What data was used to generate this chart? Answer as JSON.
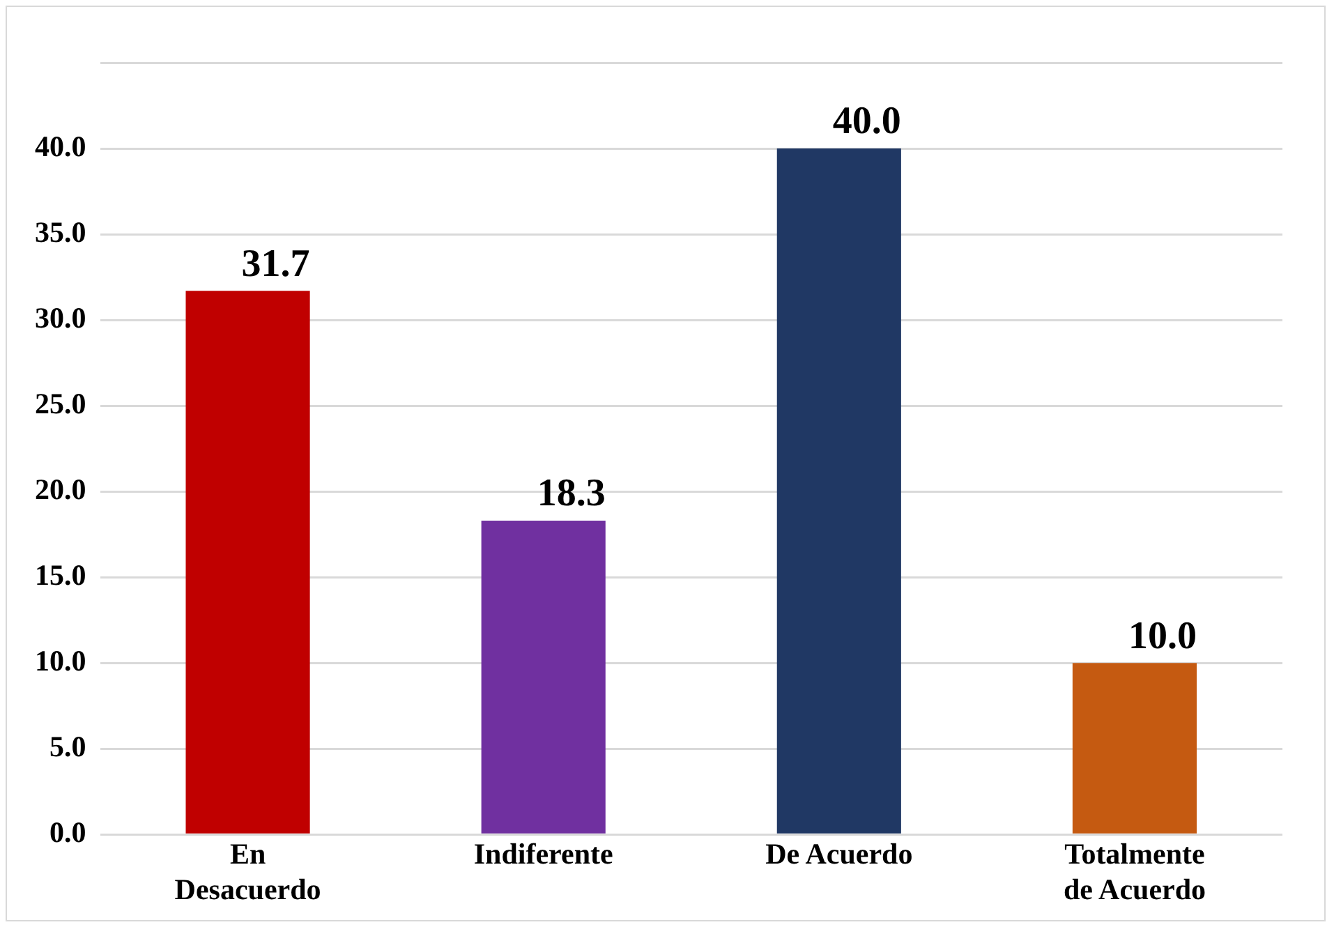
{
  "chart_data": {
    "type": "bar",
    "categories": [
      "En Desacuerdo",
      "Indiferente",
      "De Acuerdo",
      "Totalmente de Acuerdo"
    ],
    "values": [
      31.7,
      18.3,
      40.0,
      10.0
    ],
    "colors": [
      "#c00000",
      "#7030a0",
      "#203864",
      "#c55a11"
    ],
    "ylim": [
      0,
      45
    ],
    "yticks": [
      {
        "value": 0,
        "label": "0.0"
      },
      {
        "value": 5,
        "label": "5.0"
      },
      {
        "value": 10,
        "label": "10.0"
      },
      {
        "value": 15,
        "label": "15.0"
      },
      {
        "value": 20,
        "label": "20.0"
      },
      {
        "value": 25,
        "label": "25.0"
      },
      {
        "value": 30,
        "label": "30.0"
      },
      {
        "value": 35,
        "label": "35.0"
      },
      {
        "value": 40,
        "label": "40.0"
      },
      {
        "value": 45,
        "label": null
      }
    ],
    "value_labels": [
      "31.7",
      "18.3",
      "40.0",
      "10.0"
    ],
    "grid": "y",
    "legend": false
  }
}
